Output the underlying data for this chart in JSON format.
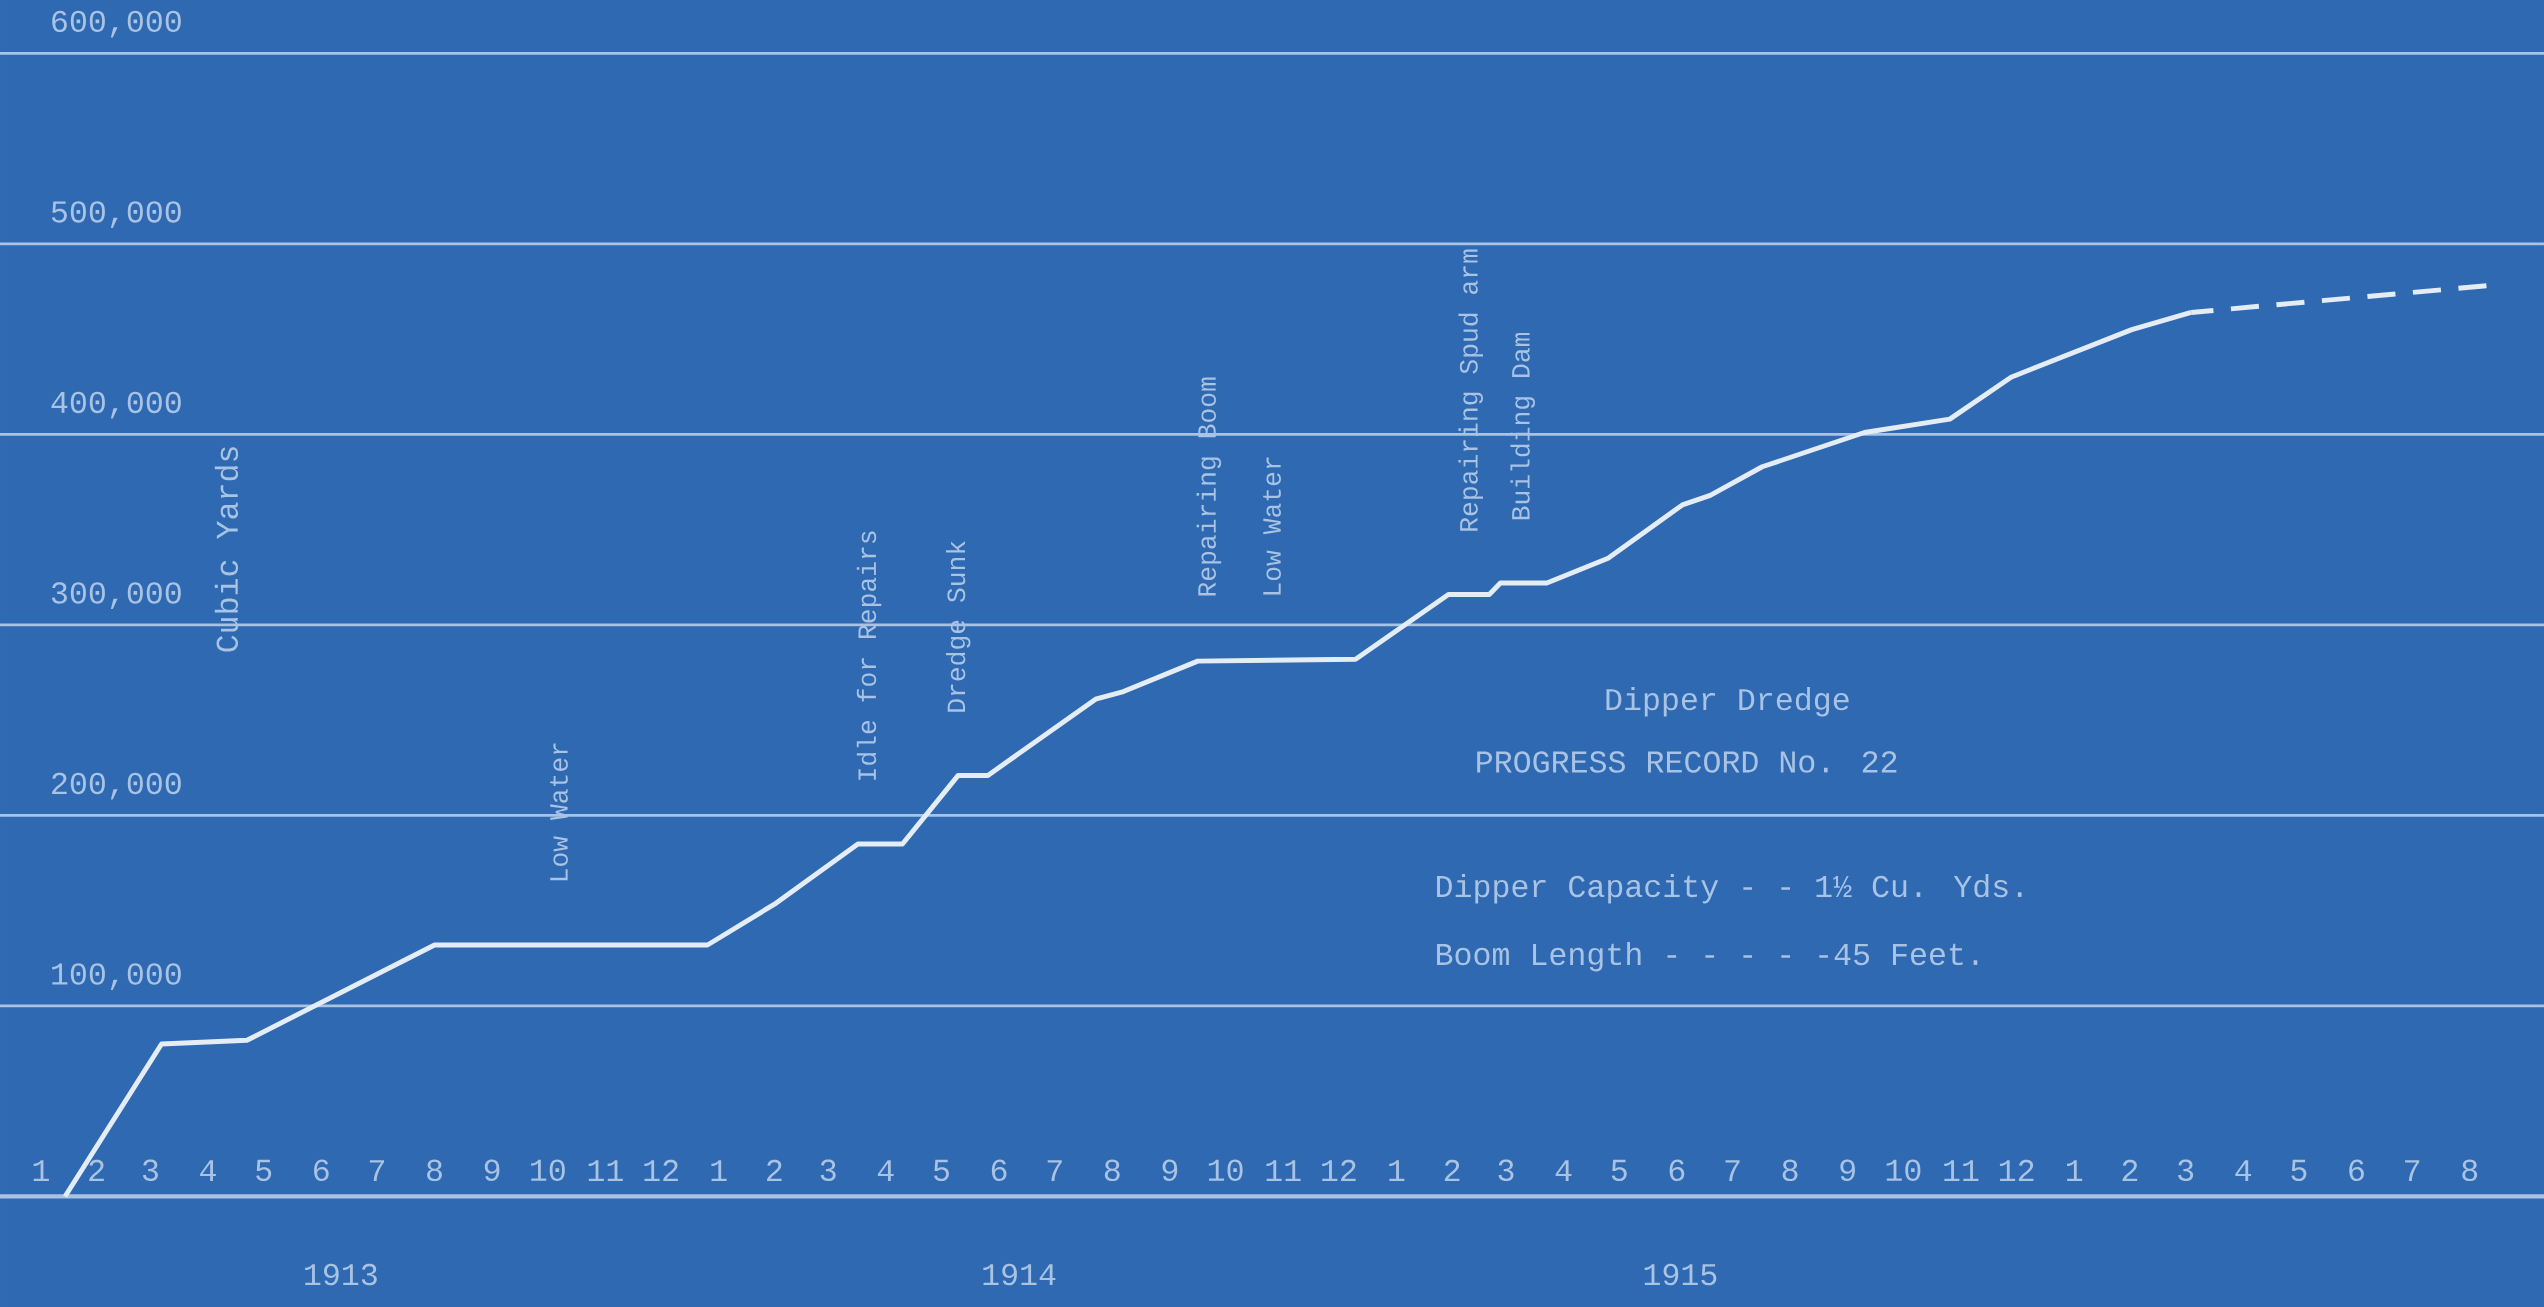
{
  "chart_data": {
    "type": "line",
    "title": "Dipper Dredge",
    "subtitle": "PROGRESS RECORD No. 22",
    "ylabel": "Cubic Yards",
    "x": [
      "1913-01-29",
      "1913-03-22",
      "1913-05-07",
      "1913-08-16",
      "1914-01-10",
      "1914-02-16",
      "1914-04-01",
      "1914-04-25",
      "1914-05-25",
      "1914-06-10",
      "1914-08-07",
      "1914-08-22",
      "1914-10-01",
      "1914-12-25",
      "1915-02-13",
      "1915-03-07",
      "1915-03-13",
      "1915-04-07",
      "1915-05-10",
      "1915-06-19",
      "1915-07-04",
      "1915-08-01",
      "1915-09-25",
      "1915-11-10",
      "1915-12-13",
      "1916-02-16",
      "1916-03-19"
    ],
    "series": [
      {
        "color": "#e4ecf6",
        "line_style": "solid",
        "values": [
          0,
          80000,
          82000,
          132000,
          132000,
          154000,
          185000,
          185000,
          221000,
          221000,
          261000,
          265000,
          281000,
          282000,
          316000,
          316000,
          322000,
          322000,
          335000,
          363000,
          368000,
          383000,
          401000,
          408000,
          430000,
          455000,
          464000
        ]
      },
      {
        "color": "#e4ecf6",
        "line_style": "dashed",
        "x": [
          "1916-03-19",
          "1916-08-25"
        ],
        "values": [
          464000,
          478000
        ]
      }
    ],
    "xlim": [
      "1912-12-25",
      "1916-09-25"
    ],
    "ylim": [
      -58000,
      628000
    ],
    "yticks": [
      {
        "value": 100000,
        "label": "100,000"
      },
      {
        "value": 200000,
        "label": "200,000"
      },
      {
        "value": 300000,
        "label": "300,000"
      },
      {
        "value": 400000,
        "label": "400,000"
      },
      {
        "value": 500000,
        "label": "500,000"
      },
      {
        "value": 600000,
        "label": "600,000"
      }
    ],
    "xticks": [
      {
        "value": "1913-01-16",
        "label": "1"
      },
      {
        "value": "1913-02-15",
        "label": "2"
      },
      {
        "value": "1913-03-16",
        "label": "3"
      },
      {
        "value": "1913-04-16",
        "label": "4"
      },
      {
        "value": "1913-05-16",
        "label": "5"
      },
      {
        "value": "1913-06-16",
        "label": "6"
      },
      {
        "value": "1913-07-16",
        "label": "7"
      },
      {
        "value": "1913-08-16",
        "label": "8"
      },
      {
        "value": "1913-09-16",
        "label": "9"
      },
      {
        "value": "1913-10-16",
        "label": "10"
      },
      {
        "value": "1913-11-16",
        "label": "11"
      },
      {
        "value": "1913-12-16",
        "label": "12"
      },
      {
        "value": "1914-01-16",
        "label": "1"
      },
      {
        "value": "1914-02-15",
        "label": "2"
      },
      {
        "value": "1914-03-16",
        "label": "3"
      },
      {
        "value": "1914-04-16",
        "label": "4"
      },
      {
        "value": "1914-05-16",
        "label": "5"
      },
      {
        "value": "1914-06-16",
        "label": "6"
      },
      {
        "value": "1914-07-16",
        "label": "7"
      },
      {
        "value": "1914-08-16",
        "label": "8"
      },
      {
        "value": "1914-09-16",
        "label": "9"
      },
      {
        "value": "1914-10-16",
        "label": "10"
      },
      {
        "value": "1914-11-16",
        "label": "11"
      },
      {
        "value": "1914-12-16",
        "label": "12"
      },
      {
        "value": "1915-01-16",
        "label": "1"
      },
      {
        "value": "1915-02-15",
        "label": "2"
      },
      {
        "value": "1915-03-16",
        "label": "3"
      },
      {
        "value": "1915-04-16",
        "label": "4"
      },
      {
        "value": "1915-05-16",
        "label": "5"
      },
      {
        "value": "1915-06-16",
        "label": "6"
      },
      {
        "value": "1915-07-16",
        "label": "7"
      },
      {
        "value": "1915-08-16",
        "label": "8"
      },
      {
        "value": "1915-09-16",
        "label": "9"
      },
      {
        "value": "1915-10-16",
        "label": "10"
      },
      {
        "value": "1915-11-16",
        "label": "11"
      },
      {
        "value": "1915-12-16",
        "label": "12"
      },
      {
        "value": "1916-01-16",
        "label": "1"
      },
      {
        "value": "1916-02-15",
        "label": "2"
      },
      {
        "value": "1916-03-16",
        "label": "3"
      },
      {
        "value": "1916-04-16",
        "label": "4"
      },
      {
        "value": "1916-05-16",
        "label": "5"
      },
      {
        "value": "1916-06-16",
        "label": "6"
      },
      {
        "value": "1916-07-16",
        "label": "7"
      },
      {
        "value": "1916-08-16",
        "label": "8"
      }
    ],
    "grid": "y",
    "annotations": [
      "1913",
      "1914",
      "1915",
      "Dipper Capacity - - 1½ Cu. Yds.",
      "Boom Length - - - - -45 Feet.",
      {
        "text": "Low Water",
        "x": "1913-10-22",
        "y": 132000
      },
      {
        "text": "Idle for Repairs",
        "x": "1914-04-07",
        "y": 185000
      },
      {
        "text": "Dredge Sunk",
        "x": "1914-05-25",
        "y": 221000
      },
      {
        "text": "Repairing Boom",
        "x": "1914-10-07",
        "y": 282000
      },
      {
        "text": "Low Water",
        "x": "1914-11-10",
        "y": 282000
      },
      {
        "text": "Repairing Spud arm",
        "x": "1915-02-25",
        "y": 316000
      },
      {
        "text": "Building Dam",
        "x": "1915-03-25",
        "y": 322000
      }
    ]
  }
}
